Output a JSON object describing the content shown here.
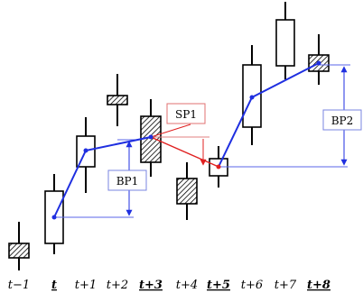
{
  "figure": {
    "time_labels": [
      {
        "text": "t−1",
        "emphasis": false
      },
      {
        "text": "t",
        "emphasis": true
      },
      {
        "text": "t+1",
        "emphasis": false
      },
      {
        "text": "t+2",
        "emphasis": false
      },
      {
        "text": "t+3",
        "emphasis": true
      },
      {
        "text": "t+4",
        "emphasis": false
      },
      {
        "text": "t+5",
        "emphasis": true
      },
      {
        "text": "t+6",
        "emphasis": false
      },
      {
        "text": "t+7",
        "emphasis": false
      },
      {
        "text": "t+8",
        "emphasis": true
      }
    ],
    "candles": [
      {
        "kind": "bearish"
      },
      {
        "kind": "bullish"
      },
      {
        "kind": "bullish"
      },
      {
        "kind": "bearish"
      },
      {
        "kind": "bearish"
      },
      {
        "kind": "bearish"
      },
      {
        "kind": "bullish"
      },
      {
        "kind": "bullish"
      },
      {
        "kind": "bullish"
      },
      {
        "kind": "bearish"
      }
    ],
    "labels": {
      "sp1": "SP1",
      "bp1": "BP1",
      "bp2": "BP2"
    },
    "colors": {
      "path": "#1f2fe0",
      "sp_path": "#e02020",
      "hatch": "#000000",
      "background": "#ffffff"
    }
  }
}
